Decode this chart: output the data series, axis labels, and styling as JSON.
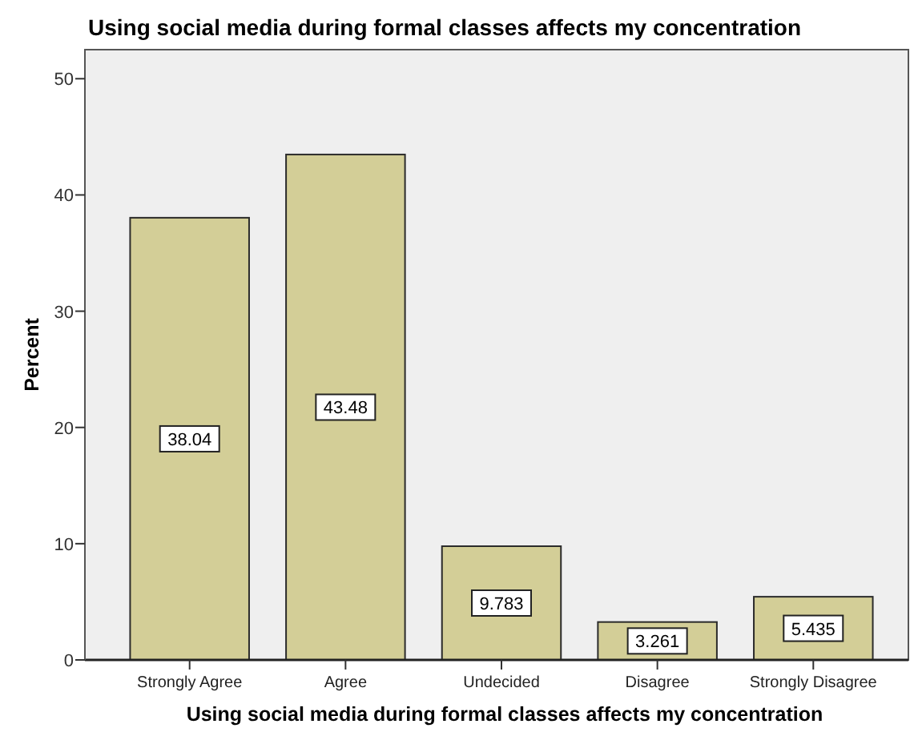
{
  "chart_data": {
    "type": "bar",
    "title": "Using social media during formal classes affects my concentration",
    "xlabel": "Using social media during formal classes affects my concentration",
    "ylabel": "Percent",
    "categories": [
      "Strongly Agree",
      "Agree",
      "Undecided",
      "Disagree",
      "Strongly Disagree"
    ],
    "values": [
      38.04,
      43.48,
      9.783,
      3.261,
      5.435
    ],
    "color": "#d3ce97",
    "ylim": [
      0,
      52.5
    ],
    "yticks": [
      0,
      10,
      20,
      30,
      40,
      50
    ],
    "grid": false,
    "data_labels": true
  }
}
